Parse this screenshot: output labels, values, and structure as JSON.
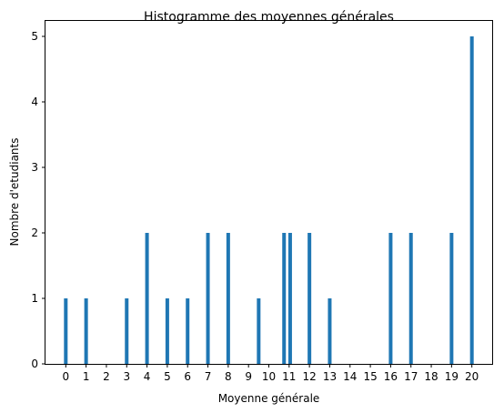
{
  "chart_data": {
    "type": "bar",
    "title": "Histogramme des moyennes générales",
    "xlabel": "Moyenne générale",
    "ylabel": "Nombre d'etudiants",
    "xlim": [
      -1,
      21
    ],
    "ylim": [
      0,
      5.25
    ],
    "xticks": [
      "0",
      "1",
      "2",
      "3",
      "4",
      "5",
      "6",
      "7",
      "8",
      "9",
      "10",
      "11",
      "12",
      "13",
      "14",
      "15",
      "16",
      "17",
      "18",
      "19",
      "20"
    ],
    "yticks": [
      "0",
      "1",
      "2",
      "3",
      "4",
      "5"
    ],
    "bar_color": "#1f77b4",
    "bars": [
      {
        "x": 0,
        "value": 1
      },
      {
        "x": 1,
        "value": 1
      },
      {
        "x": 3,
        "value": 1
      },
      {
        "x": 4,
        "value": 2
      },
      {
        "x": 5,
        "value": 1
      },
      {
        "x": 6,
        "value": 1
      },
      {
        "x": 7,
        "value": 2
      },
      {
        "x": 8,
        "value": 2
      },
      {
        "x": 9.5,
        "value": 1
      },
      {
        "x": 10.75,
        "value": 2
      },
      {
        "x": 11.05,
        "value": 2
      },
      {
        "x": 12,
        "value": 2
      },
      {
        "x": 13,
        "value": 1
      },
      {
        "x": 16,
        "value": 2
      },
      {
        "x": 17,
        "value": 2
      },
      {
        "x": 19,
        "value": 2
      },
      {
        "x": 20,
        "value": 5
      }
    ],
    "grid": false,
    "legend": "none"
  }
}
